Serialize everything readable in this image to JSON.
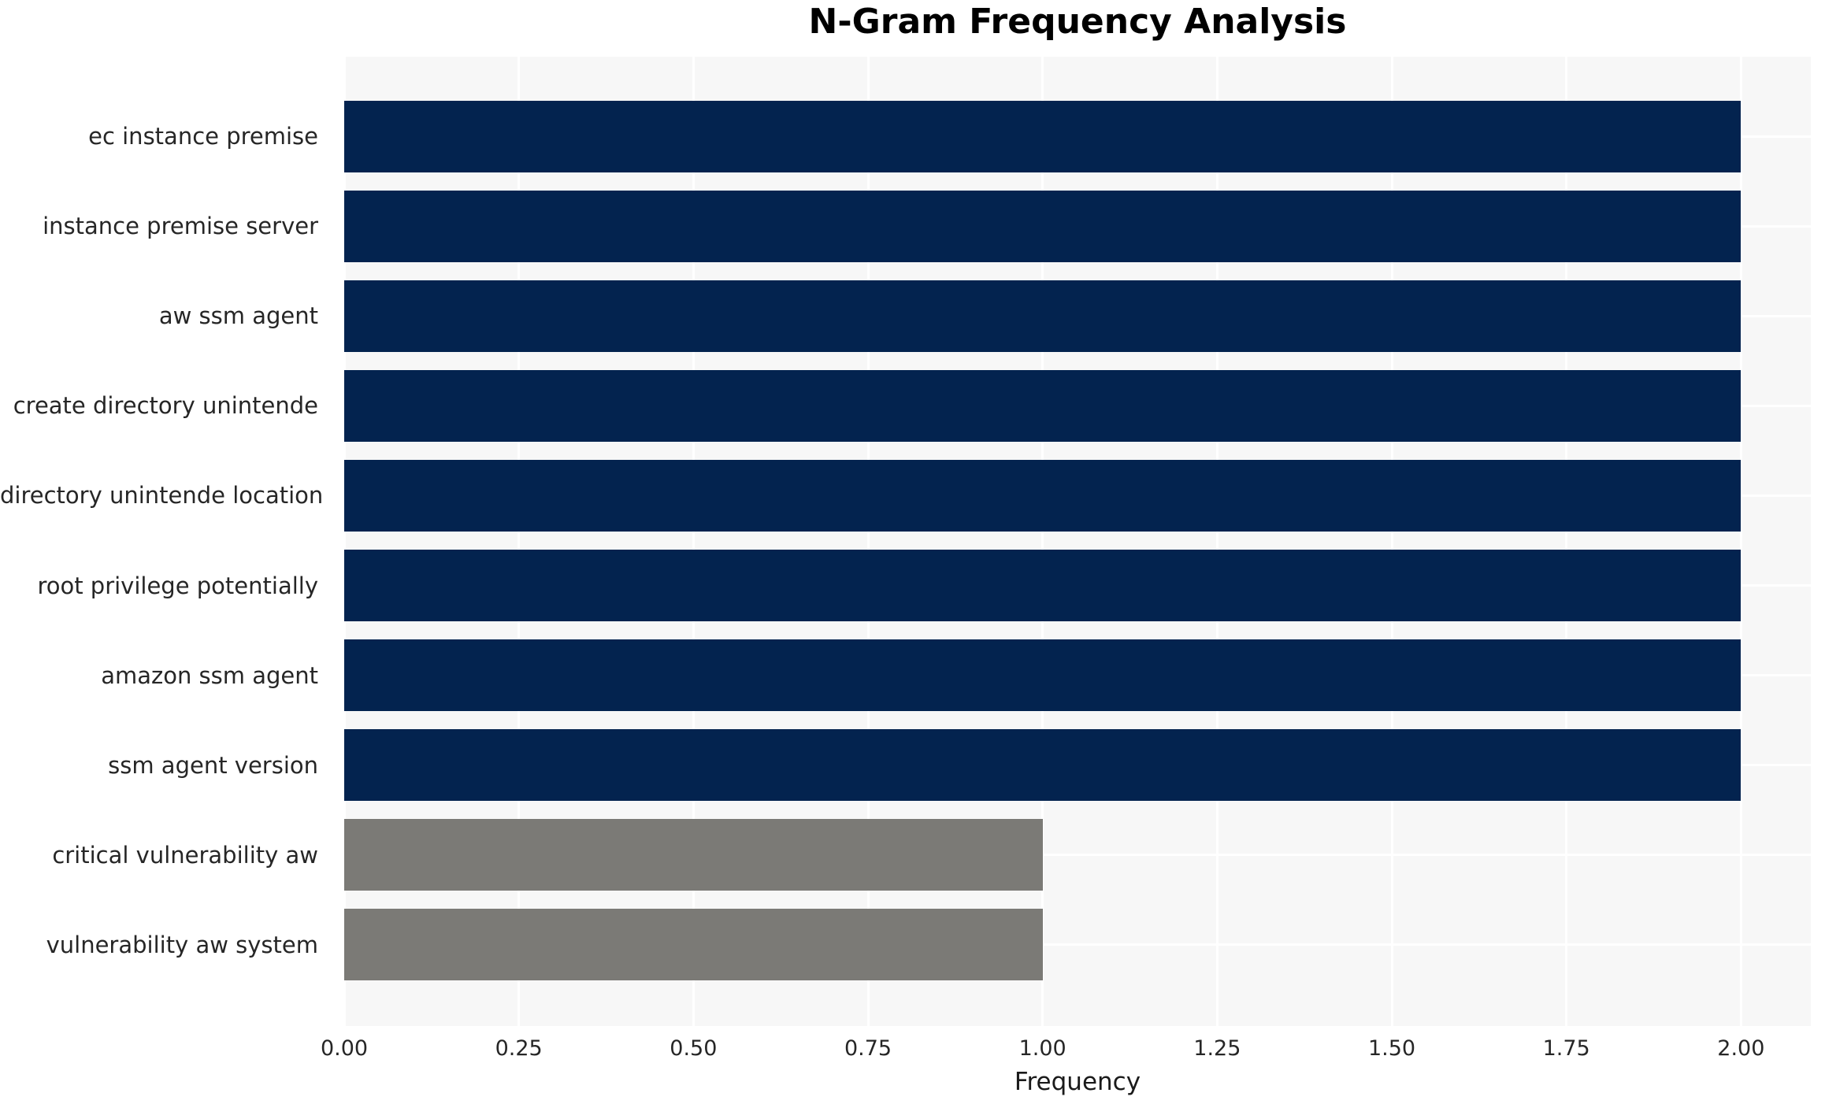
{
  "chart_data": {
    "type": "bar",
    "orientation": "horizontal",
    "title": "N-Gram Frequency Analysis",
    "xlabel": "Frequency",
    "ylabel": "",
    "categories": [
      "ec instance premise",
      "instance premise server",
      "aw ssm agent",
      "create directory unintende",
      "directory unintende location",
      "root privilege potentially",
      "amazon ssm agent",
      "ssm agent version",
      "critical vulnerability aw",
      "vulnerability aw system"
    ],
    "values": [
      2.0,
      2.0,
      2.0,
      2.0,
      2.0,
      2.0,
      2.0,
      2.0,
      1.0,
      1.0
    ],
    "xlim": [
      0,
      2.1
    ],
    "xticks": [
      0.0,
      0.25,
      0.5,
      0.75,
      1.0,
      1.25,
      1.5,
      1.75,
      2.0
    ],
    "xtick_labels": [
      "0.00",
      "0.25",
      "0.50",
      "0.75",
      "1.00",
      "1.25",
      "1.50",
      "1.75",
      "2.00"
    ],
    "grid": true,
    "legend": "none",
    "bar_colors": [
      "#03234f",
      "#03234f",
      "#03234f",
      "#03234f",
      "#03234f",
      "#03234f",
      "#03234f",
      "#03234f",
      "#7b7a76",
      "#7b7a76"
    ],
    "colors": {
      "bar_high_frequency": "#03234f",
      "bar_low_frequency": "#7b7a76",
      "plot_background": "#f7f7f7",
      "gridline": "#ffffff",
      "tick_text": "#262626",
      "title_text": "#000000"
    }
  }
}
